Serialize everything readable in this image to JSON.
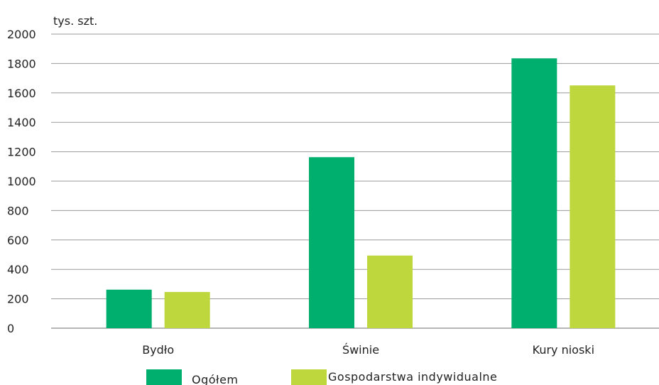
{
  "chart_data": {
    "type": "bar",
    "ylabel": "tys. szt.",
    "categories": [
      "Bydło",
      "Świnie",
      "Kury nioski"
    ],
    "series": [
      {
        "name": "Ogółem",
        "values": [
          262,
          1163,
          1835
        ]
      },
      {
        "name": "Gospodarstwa indywidualne",
        "values": [
          246,
          494,
          1651
        ]
      }
    ],
    "ylim": [
      0,
      2000
    ],
    "yticks": [
      0,
      200,
      400,
      600,
      800,
      1000,
      1200,
      1400,
      1600,
      1800,
      2000
    ],
    "grid": true,
    "legend_position": "bottom"
  },
  "colors": {
    "Ogółem": "#00AE6E",
    "Gospodarstwa indywidualne": "#BED73C",
    "grid": "#9a9a9a",
    "axis": "#6e6e6e"
  }
}
